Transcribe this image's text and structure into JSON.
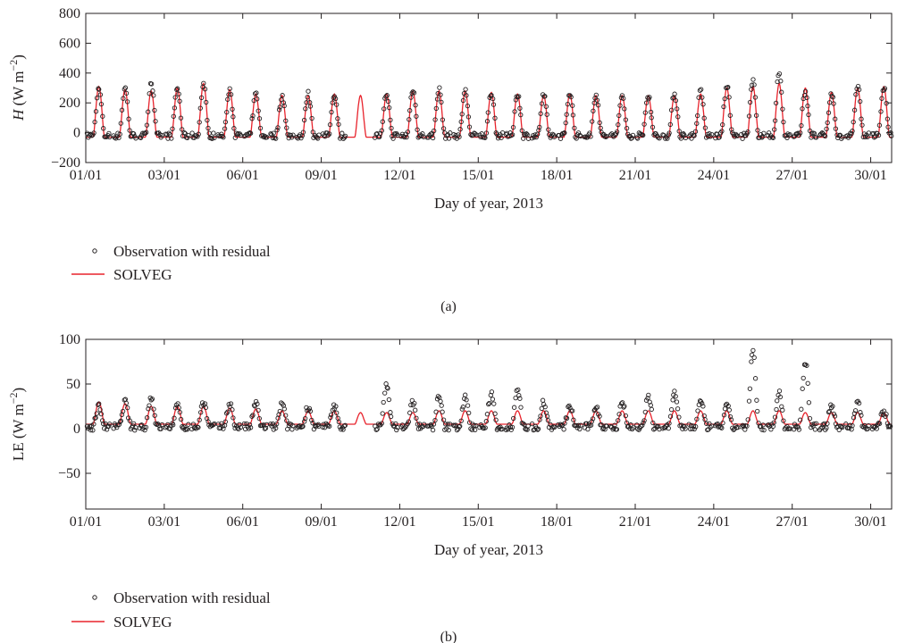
{
  "chart_data": [
    {
      "type": "line",
      "panel_label": "(a)",
      "ylabel_italic": "H",
      "ylabel_rest": " (W m",
      "ylabel_exp": "−2",
      "ylabel_close": ")",
      "xlabel": "Day of year, 2013",
      "ylim": [
        -200,
        800
      ],
      "yticks": [
        -200,
        0,
        200,
        400,
        600,
        800
      ],
      "xlim_days": [
        0,
        30.8
      ],
      "xticks": [
        {
          "day": 0,
          "label": "01/01"
        },
        {
          "day": 3,
          "label": "03/01"
        },
        {
          "day": 6,
          "label": "06/01"
        },
        {
          "day": 9,
          "label": "09/01"
        },
        {
          "day": 12,
          "label": "12/01"
        },
        {
          "day": 15,
          "label": "15/01"
        },
        {
          "day": 18,
          "label": "18/01"
        },
        {
          "day": 21,
          "label": "21/01"
        },
        {
          "day": 24,
          "label": "24/01"
        },
        {
          "day": 27,
          "label": "27/01"
        },
        {
          "day": 30,
          "label": "30/01"
        }
      ],
      "series": [
        {
          "name": "Observation with residual",
          "kind": "scatter",
          "color": "#231f20",
          "daily_peak_values": [
            290,
            300,
            340,
            300,
            320,
            290,
            260,
            250,
            260,
            260,
            0,
            260,
            290,
            290,
            280,
            270,
            260,
            250,
            270,
            260,
            250,
            250,
            260,
            280,
            320,
            340,
            400,
            280,
            260,
            320,
            300
          ],
          "night_value": -20
        },
        {
          "name": "SOLVEG",
          "kind": "line",
          "color": "#e8232c",
          "daily_peak_values": [
            310,
            290,
            280,
            300,
            330,
            290,
            260,
            250,
            250,
            260,
            250,
            260,
            280,
            280,
            280,
            270,
            260,
            250,
            260,
            250,
            250,
            250,
            250,
            260,
            300,
            310,
            330,
            300,
            270,
            300,
            310
          ],
          "night_value": -30
        }
      ],
      "legend": {
        "position": "bottom-left"
      },
      "grid": false
    },
    {
      "type": "line",
      "panel_label": "(b)",
      "ylabel_italic": "",
      "ylabel_rest": "LE (W m",
      "ylabel_exp": "−2",
      "ylabel_close": ")",
      "xlabel": "Day of year, 2013",
      "ylim": [
        -90,
        100
      ],
      "yticks": [
        -50,
        0,
        50,
        100
      ],
      "xlim_days": [
        0,
        30.8
      ],
      "xticks": [
        {
          "day": 0,
          "label": "01/01"
        },
        {
          "day": 3,
          "label": "03/01"
        },
        {
          "day": 6,
          "label": "06/01"
        },
        {
          "day": 9,
          "label": "09/01"
        },
        {
          "day": 12,
          "label": "12/01"
        },
        {
          "day": 15,
          "label": "15/01"
        },
        {
          "day": 18,
          "label": "18/01"
        },
        {
          "day": 21,
          "label": "21/01"
        },
        {
          "day": 24,
          "label": "24/01"
        },
        {
          "day": 27,
          "label": "27/01"
        },
        {
          "day": 30,
          "label": "30/01"
        }
      ],
      "series": [
        {
          "name": "Observation with residual",
          "kind": "scatter",
          "color": "#231f20",
          "daily_peak_values": [
            25,
            30,
            35,
            25,
            30,
            28,
            28,
            28,
            25,
            25,
            0,
            50,
            30,
            35,
            35,
            40,
            45,
            30,
            25,
            25,
            30,
            35,
            40,
            30,
            25,
            85,
            40,
            75,
            25,
            30,
            20
          ],
          "night_value": 2
        },
        {
          "name": "SOLVEG",
          "kind": "line",
          "color": "#e8232c",
          "daily_peak_values": [
            30,
            28,
            25,
            25,
            25,
            23,
            22,
            20,
            20,
            20,
            18,
            18,
            18,
            20,
            20,
            20,
            20,
            20,
            20,
            20,
            20,
            20,
            20,
            20,
            20,
            20,
            20,
            18,
            18,
            18,
            18
          ],
          "night_value": 5
        }
      ],
      "legend": {
        "position": "bottom-left"
      },
      "grid": false
    }
  ]
}
